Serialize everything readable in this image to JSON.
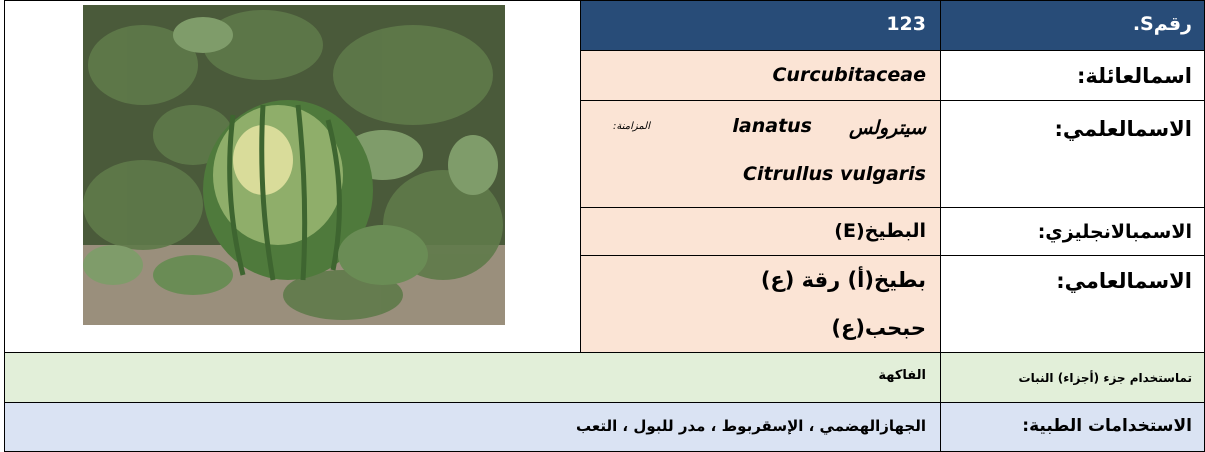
{
  "record": {
    "number_label": "رقمS.",
    "number": "123"
  },
  "family": {
    "label": "اسمالعائلة:",
    "value": "Curcubitaceae"
  },
  "scientific_name": {
    "label": "الاسمالعلمي:",
    "name_arabic": "سيترولس",
    "name_latin": "lanatus",
    "synonym_label": "المزامنة:",
    "synonym": "Citrullus vulgaris"
  },
  "english_name": {
    "label": "الاسمبالانجليزي:",
    "value": "البطيخ(E)"
  },
  "common_name": {
    "label": "الاسمالعامي:",
    "values": [
      "بطيخ(أ) رقة (ع)",
      "حبحب(ع)"
    ]
  },
  "parts_used": {
    "label": "تماستخدام جزء (أجزاء) النبات",
    "value": "الفاكهة"
  },
  "medicinal_uses": {
    "label": "الاستخدامات الطبية:",
    "value": "الجهازالهضمي ، الإسقربوط ، مدر للبول ، التعب"
  }
}
